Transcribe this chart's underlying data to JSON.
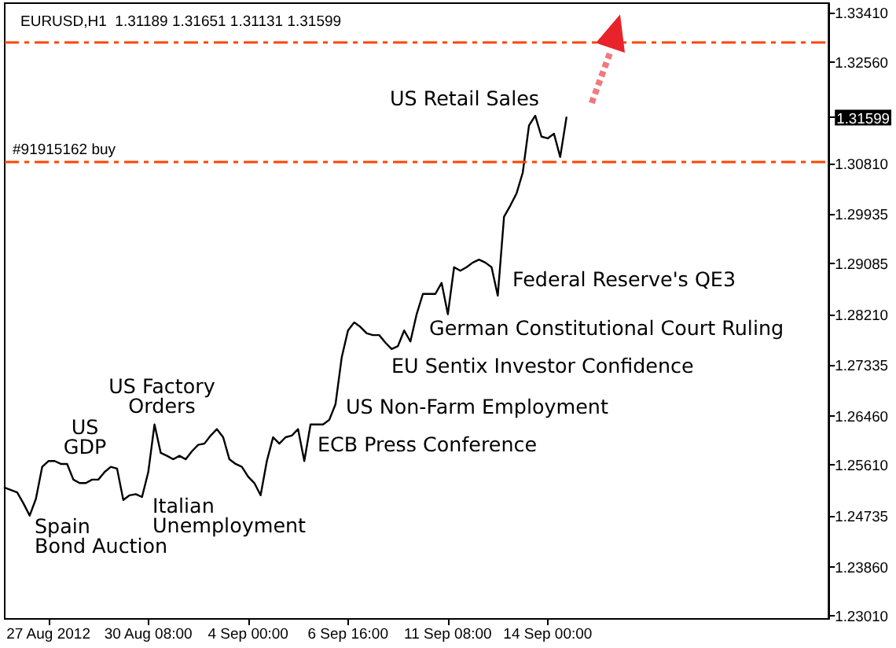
{
  "chart_data": {
    "type": "line",
    "title": "EURUSD,H1  1.31189 1.31651 1.31131 1.31599",
    "categories": [
      null,
      null,
      null,
      null,
      null,
      null,
      null,
      "27 Aug 2012",
      null,
      null,
      null,
      null,
      null,
      null,
      null,
      null,
      null,
      null,
      null,
      null,
      null,
      null,
      null,
      "30 Aug 08:00",
      null,
      null,
      null,
      null,
      null,
      null,
      null,
      null,
      null,
      null,
      null,
      null,
      null,
      null,
      null,
      "4 Sep 00:00",
      null,
      null,
      null,
      null,
      null,
      null,
      null,
      null,
      null,
      null,
      null,
      null,
      null,
      null,
      null,
      "6 Sep 16:00",
      null,
      null,
      null,
      null,
      null,
      null,
      null,
      null,
      null,
      null,
      null,
      null,
      null,
      null,
      null,
      "11 Sep 08:00",
      null,
      null,
      null,
      null,
      null,
      null,
      null,
      null,
      null,
      null,
      null,
      null,
      null,
      null,
      null,
      "14 Sep 00:00",
      null,
      null,
      null,
      null,
      null,
      null,
      null,
      null,
      null,
      null,
      null,
      null,
      null,
      null,
      null,
      null,
      null,
      null,
      null,
      null,
      null,
      null,
      null,
      null,
      null,
      null,
      null,
      null,
      null,
      null,
      null,
      null,
      null,
      null,
      null,
      null,
      null,
      null,
      null,
      null,
      null,
      null,
      null,
      null,
      null
    ],
    "values": [
      1.2522,
      1.2518,
      1.2514,
      1.2495,
      1.2474,
      1.2503,
      1.2558,
      1.2568,
      1.2568,
      1.2563,
      1.2563,
      1.2536,
      1.253,
      1.253,
      1.2536,
      1.2536,
      1.2549,
      1.2558,
      1.2555,
      1.2501,
      1.2509,
      1.2511,
      1.2506,
      1.2549,
      1.2631,
      1.2582,
      1.2577,
      1.2571,
      1.2577,
      1.2571,
      1.2585,
      1.2596,
      1.2598,
      1.2612,
      1.2623,
      1.2609,
      1.2571,
      1.2563,
      1.2558,
      1.2541,
      1.253,
      1.2509,
      1.2568,
      1.2609,
      1.2598,
      1.2609,
      1.2612,
      1.2623,
      1.2568,
      1.2631,
      1.2631,
      1.2631,
      1.2639,
      1.2666,
      1.2747,
      1.2793,
      1.2807,
      1.2799,
      1.2788,
      1.2785,
      1.2785,
      1.2772,
      1.2761,
      1.2766,
      1.2793,
      1.2774,
      1.2821,
      1.2856,
      1.2856,
      1.2856,
      1.2875,
      1.2821,
      1.2902,
      1.2896,
      1.2902,
      1.291,
      1.2915,
      1.291,
      1.2902,
      1.2853,
      1.2989,
      1.3008,
      1.3029,
      1.3065,
      1.3146,
      1.3163,
      1.3127,
      1.3124,
      1.3132,
      1.3092,
      1.31599,
      null,
      null,
      null,
      null,
      null,
      null,
      null,
      null,
      null,
      null,
      null,
      null,
      null,
      null,
      null,
      null,
      null,
      null,
      null,
      null,
      null,
      null,
      null,
      null,
      null,
      null,
      null,
      null,
      null,
      null,
      null,
      null,
      null,
      null,
      null,
      null,
      null,
      null,
      null,
      null,
      null,
      null
    ],
    "color": "#000000",
    "ylim": [
      1.2296,
      1.3357
    ],
    "yticks": [
      {
        "value": 1.2301,
        "label": "1.23010"
      },
      {
        "value": 1.2386,
        "label": "1.23860"
      },
      1.24735,
      {
        "value": 1.2561,
        "label": "1.25610"
      },
      {
        "value": 1.2646,
        "label": "1.26460"
      },
      1.27335,
      {
        "value": 1.2821,
        "label": "1.28210"
      },
      1.29085,
      1.29935,
      {
        "value": 1.3081,
        "label": "1.30810"
      },
      1.31599,
      {
        "value": 1.3256,
        "label": "1.32560"
      },
      {
        "value": 1.3341,
        "label": "1.33410"
      }
    ],
    "ref_lines": [
      {
        "axis": "y",
        "value": 1.3289,
        "color": "#ff4500",
        "line_style": "dashed"
      },
      {
        "axis": "y",
        "value": 1.3085,
        "label": "#91915162 buy",
        "color": "#ff4500",
        "line_style": "dashed"
      }
    ],
    "annotations": [
      "Spain\nBond Auction",
      "US\nGDP",
      "US Factory\nOrders",
      "Italian\nUnemployment",
      "ECB Press Conference",
      "US Non-Farm Employment",
      "EU Sentix Investor Confidence",
      "German Constitutional Court Ruling",
      "Federal Reserve's QE3",
      "US Retail Sales"
    ]
  }
}
